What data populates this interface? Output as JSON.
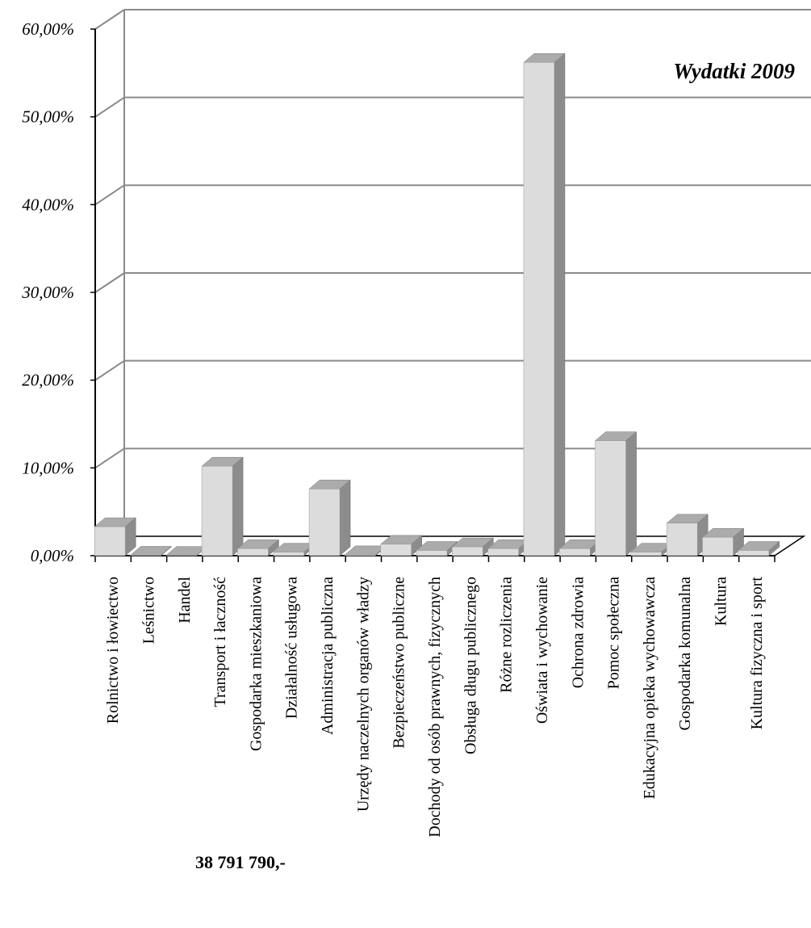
{
  "chart_data": {
    "type": "bar",
    "title": "Wydatki 2009",
    "total_label": "38 791 790,-",
    "categories": [
      "Rolnictwo i łowiectwo",
      "Leśnictwo",
      "Handel",
      "Transport i łaczność",
      "Gospodarka mieszkaniowa",
      "Działalność usługowa",
      "Administracja publiczna",
      "Urzędy naczelnych organów władzy",
      "Bezpieczeństwo publiczne",
      "Dochody od osób prawnych, fizycznych",
      "Obsługa długu publicznego",
      "Różne rozliczenia",
      "Oświata i wychowanie",
      "Ochrona zdrowia",
      "Pomoc społeczna",
      "Edukacyjna opieka wychowawcza",
      "Gospodarka komunalna",
      "Kultura",
      "Kultura fizyczna i sport"
    ],
    "values": [
      3.3,
      0.05,
      0.03,
      10.2,
      0.8,
      0.4,
      7.6,
      0.1,
      1.3,
      0.6,
      1.0,
      0.8,
      56.2,
      0.8,
      13.1,
      0.4,
      3.7,
      2.1,
      0.6
    ],
    "ylim": [
      0,
      60
    ],
    "yticks": [
      "0,00%",
      "10,00%",
      "20,00%",
      "30,00%",
      "40,00%",
      "50,00%",
      "60,00%"
    ],
    "grid": true,
    "legend": "none",
    "colors": {
      "bar_front": "#dcdcdc",
      "bar_side": "#8c8c8c",
      "bar_top": "#ababab",
      "gridline": "#8a8a8a",
      "axis": "#000000"
    }
  }
}
